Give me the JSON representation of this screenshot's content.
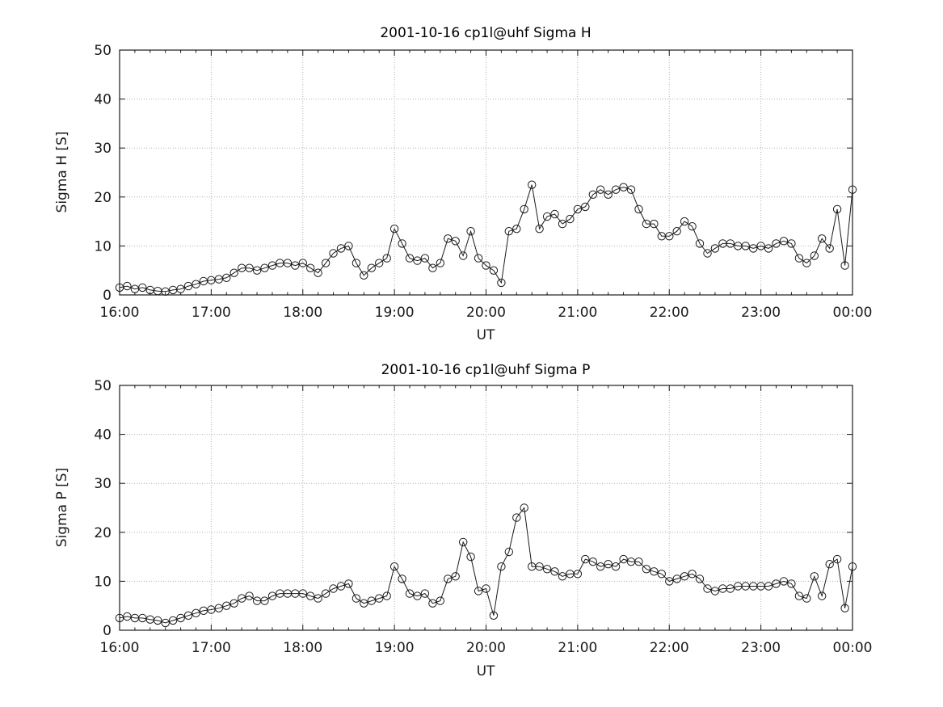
{
  "figure": {
    "background": "#ffffff",
    "axes_color": "#1a1a1a",
    "grid_color": "#b0b0b0",
    "marker_style": "open-circle"
  },
  "chart_data": [
    {
      "type": "line",
      "title": "2001-10-16  cp1l@uhf Sigma H",
      "xlabel": "UT",
      "ylabel": "Sigma H [S]",
      "ylim": [
        0,
        50
      ],
      "yticks": [
        0,
        10,
        20,
        30,
        40,
        50
      ],
      "grid": true,
      "legend": "none",
      "marker": "circle",
      "line_color": "#1a1a1a",
      "x_tick_positions": [
        0,
        12,
        24,
        36,
        48,
        60,
        72,
        84,
        96
      ],
      "x_tick_labels": [
        "16:00",
        "17:00",
        "18:00",
        "19:00",
        "20:00",
        "21:00",
        "22:00",
        "23:00",
        "00:00"
      ],
      "x": [
        "16:00",
        "16:05",
        "16:10",
        "16:15",
        "16:20",
        "16:25",
        "16:30",
        "16:35",
        "16:40",
        "16:45",
        "16:50",
        "16:55",
        "17:00",
        "17:05",
        "17:10",
        "17:15",
        "17:20",
        "17:25",
        "17:30",
        "17:35",
        "17:40",
        "17:45",
        "17:50",
        "17:55",
        "18:00",
        "18:05",
        "18:10",
        "18:15",
        "18:20",
        "18:25",
        "18:30",
        "18:35",
        "18:40",
        "18:45",
        "18:50",
        "18:55",
        "19:00",
        "19:05",
        "19:10",
        "19:15",
        "19:20",
        "19:25",
        "19:30",
        "19:35",
        "19:40",
        "19:45",
        "19:50",
        "19:55",
        "20:00",
        "20:05",
        "20:10",
        "20:15",
        "20:20",
        "20:25",
        "20:30",
        "20:35",
        "20:40",
        "20:45",
        "20:50",
        "20:55",
        "21:00",
        "21:05",
        "21:10",
        "21:15",
        "21:20",
        "21:25",
        "21:30",
        "21:35",
        "21:40",
        "21:45",
        "21:50",
        "21:55",
        "22:00",
        "22:05",
        "22:10",
        "22:15",
        "22:20",
        "22:25",
        "22:30",
        "22:35",
        "22:40",
        "22:45",
        "22:50",
        "22:55",
        "23:00",
        "23:05",
        "23:10",
        "23:15",
        "23:20",
        "23:25",
        "23:30",
        "23:35",
        "23:40",
        "23:45",
        "23:50",
        "23:55",
        "00:00"
      ],
      "values": [
        1.5,
        1.8,
        1.2,
        1.5,
        1.0,
        0.8,
        0.7,
        1.0,
        1.2,
        1.8,
        2.2,
        2.8,
        3.0,
        3.2,
        3.5,
        4.5,
        5.5,
        5.5,
        5.0,
        5.5,
        6.0,
        6.5,
        6.5,
        6.0,
        6.5,
        5.5,
        4.5,
        6.5,
        8.5,
        9.5,
        10.0,
        6.5,
        4.0,
        5.5,
        6.5,
        7.5,
        13.5,
        10.5,
        7.5,
        7.0,
        7.5,
        5.5,
        6.5,
        11.5,
        11.0,
        8.0,
        13.0,
        7.5,
        6.0,
        5.0,
        2.5,
        13.0,
        13.5,
        17.5,
        22.5,
        13.5,
        16.0,
        16.5,
        14.5,
        15.5,
        17.5,
        18.0,
        20.5,
        21.5,
        20.5,
        21.5,
        22.0,
        21.5,
        17.5,
        14.5,
        14.5,
        12.0,
        12.0,
        13.0,
        15.0,
        14.0,
        10.5,
        8.5,
        9.5,
        10.5,
        10.5,
        10.0,
        10.0,
        9.5,
        10.0,
        9.5,
        10.5,
        11.0,
        10.5,
        7.5,
        6.5,
        8.0,
        11.5,
        9.5,
        17.5,
        6.0,
        21.5
      ]
    },
    {
      "type": "line",
      "title": "2001-10-16  cp1l@uhf Sigma P",
      "xlabel": "UT",
      "ylabel": "Sigma P [S]",
      "ylim": [
        0,
        50
      ],
      "yticks": [
        0,
        10,
        20,
        30,
        40,
        50
      ],
      "grid": true,
      "legend": "none",
      "marker": "circle",
      "line_color": "#1a1a1a",
      "x_tick_positions": [
        0,
        12,
        24,
        36,
        48,
        60,
        72,
        84,
        96
      ],
      "x_tick_labels": [
        "16:00",
        "17:00",
        "18:00",
        "19:00",
        "20:00",
        "21:00",
        "22:00",
        "23:00",
        "00:00"
      ],
      "x": [
        "16:00",
        "16:05",
        "16:10",
        "16:15",
        "16:20",
        "16:25",
        "16:30",
        "16:35",
        "16:40",
        "16:45",
        "16:50",
        "16:55",
        "17:00",
        "17:05",
        "17:10",
        "17:15",
        "17:20",
        "17:25",
        "17:30",
        "17:35",
        "17:40",
        "17:45",
        "17:50",
        "17:55",
        "18:00",
        "18:05",
        "18:10",
        "18:15",
        "18:20",
        "18:25",
        "18:30",
        "18:35",
        "18:40",
        "18:45",
        "18:50",
        "18:55",
        "19:00",
        "19:05",
        "19:10",
        "19:15",
        "19:20",
        "19:25",
        "19:30",
        "19:35",
        "19:40",
        "19:45",
        "19:50",
        "19:55",
        "20:00",
        "20:05",
        "20:10",
        "20:15",
        "20:20",
        "20:25",
        "20:30",
        "20:35",
        "20:40",
        "20:45",
        "20:50",
        "20:55",
        "21:00",
        "21:05",
        "21:10",
        "21:15",
        "21:20",
        "21:25",
        "21:30",
        "21:35",
        "21:40",
        "21:45",
        "21:50",
        "21:55",
        "22:00",
        "22:05",
        "22:10",
        "22:15",
        "22:20",
        "22:25",
        "22:30",
        "22:35",
        "22:40",
        "22:45",
        "22:50",
        "22:55",
        "23:00",
        "23:05",
        "23:10",
        "23:15",
        "23:20",
        "23:25",
        "23:30",
        "23:35",
        "23:40",
        "23:45",
        "23:50",
        "23:55",
        "00:00"
      ],
      "values": [
        2.5,
        2.8,
        2.5,
        2.5,
        2.2,
        2.0,
        1.5,
        2.0,
        2.5,
        3.0,
        3.5,
        4.0,
        4.2,
        4.5,
        5.0,
        5.5,
        6.5,
        7.0,
        6.0,
        6.0,
        7.0,
        7.5,
        7.5,
        7.5,
        7.5,
        7.0,
        6.5,
        7.5,
        8.5,
        9.0,
        9.5,
        6.5,
        5.5,
        6.0,
        6.5,
        7.0,
        13.0,
        10.5,
        7.5,
        7.0,
        7.5,
        5.5,
        6.0,
        10.5,
        11.0,
        18.0,
        15.0,
        8.0,
        8.5,
        3.0,
        13.0,
        16.0,
        23.0,
        25.0,
        13.0,
        13.0,
        12.5,
        12.0,
        11.0,
        11.5,
        11.5,
        14.5,
        14.0,
        13.0,
        13.5,
        13.0,
        14.5,
        14.0,
        14.0,
        12.5,
        12.0,
        11.5,
        10.0,
        10.5,
        11.0,
        11.5,
        10.5,
        8.5,
        8.0,
        8.5,
        8.5,
        9.0,
        9.0,
        9.0,
        9.0,
        9.0,
        9.5,
        10.0,
        9.5,
        7.0,
        6.5,
        11.0,
        7.0,
        13.5,
        14.5,
        4.5,
        13.0
      ]
    }
  ]
}
